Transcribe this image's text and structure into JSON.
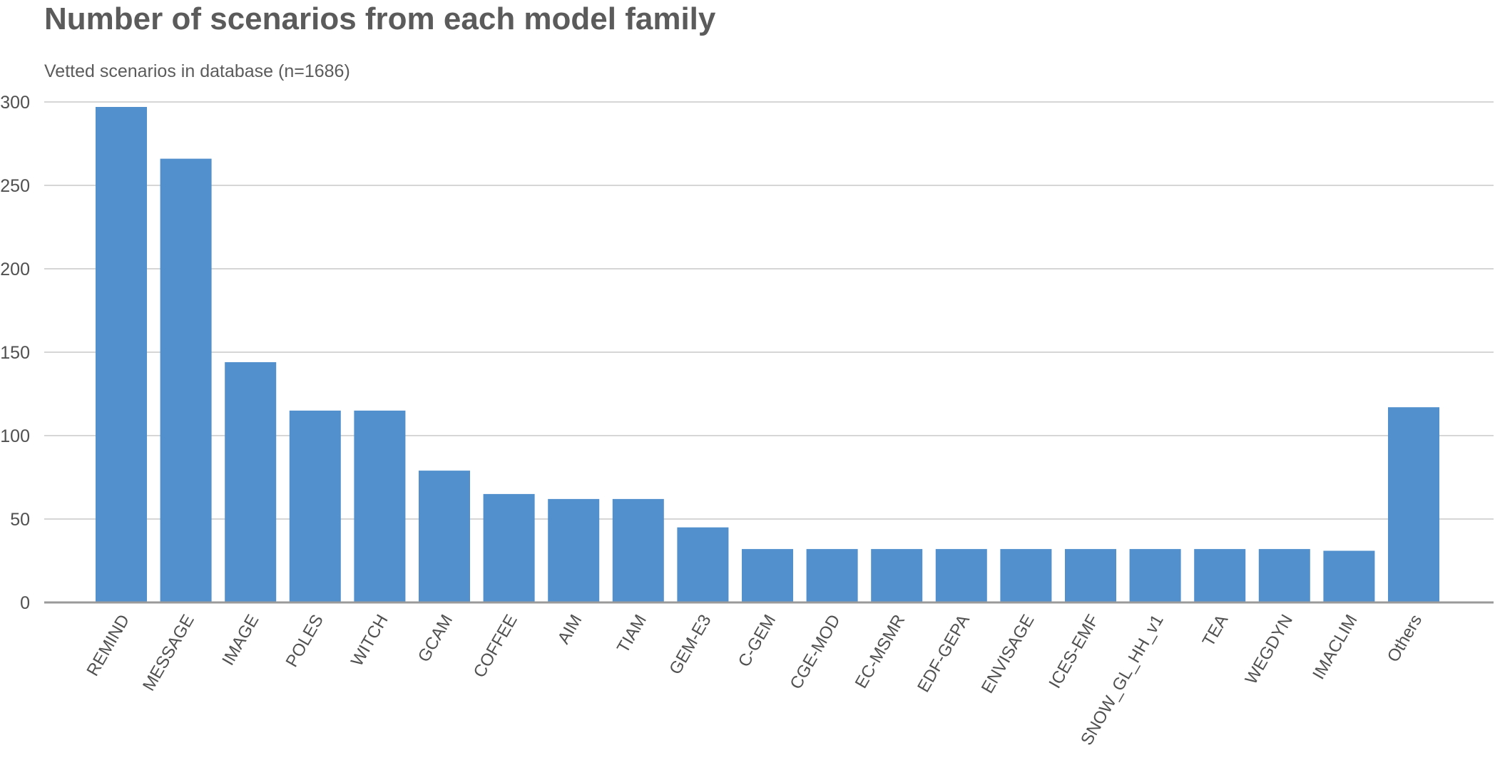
{
  "chart_data": {
    "type": "bar",
    "title": "Number of scenarios from each model family",
    "subtitle": "Vetted scenarios in database (n=1686)",
    "xlabel": "",
    "ylabel": "",
    "ylim": [
      0,
      300
    ],
    "yticks": [
      0,
      50,
      100,
      150,
      200,
      250,
      300
    ],
    "grid": true,
    "legend": "none",
    "bar_color": "#5190cd",
    "categories": [
      "REMIND",
      "MESSAGE",
      "IMAGE",
      "POLES",
      "WITCH",
      "GCAM",
      "COFFEE",
      "AIM",
      "TIAM",
      "GEM-E3",
      "C-GEM",
      "CGE-MOD",
      "EC-MSMR",
      "EDF-GEPA",
      "ENVISAGE",
      "ICES-EMF",
      "SNOW_GL_HH_v1",
      "TEA",
      "WEGDYN",
      "IMACLIM",
      "Others"
    ],
    "values": [
      297,
      266,
      144,
      115,
      115,
      79,
      65,
      62,
      62,
      45,
      32,
      32,
      32,
      32,
      32,
      32,
      32,
      32,
      32,
      31,
      117
    ]
  }
}
